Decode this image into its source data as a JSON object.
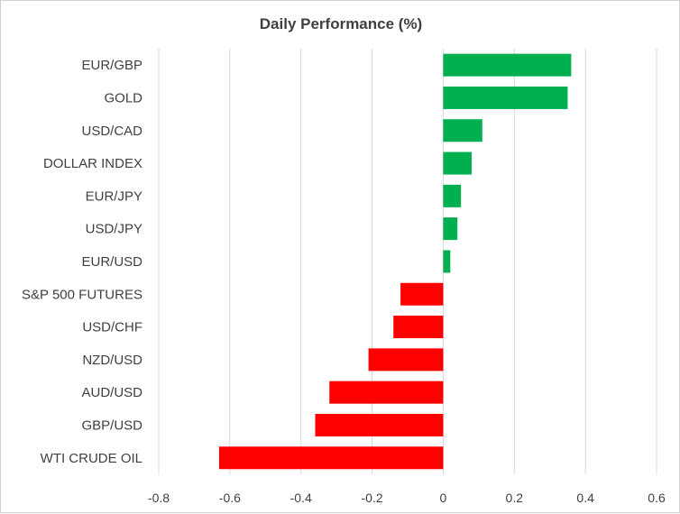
{
  "chart_data": {
    "type": "bar",
    "orientation": "horizontal",
    "title": "Daily Performance (%)",
    "categories": [
      "EUR/GBP",
      "GOLD",
      "USD/CAD",
      "DOLLAR INDEX",
      "EUR/JPY",
      "USD/JPY",
      "EUR/USD",
      "S&P 500 FUTURES",
      "USD/CHF",
      "NZD/USD",
      "AUD/USD",
      "GBP/USD",
      "WTI CRUDE OIL"
    ],
    "values": [
      0.36,
      0.35,
      0.11,
      0.08,
      0.05,
      0.04,
      0.02,
      -0.12,
      -0.14,
      -0.21,
      -0.32,
      -0.36,
      -0.63
    ],
    "xlim": [
      -0.8,
      0.6
    ],
    "xticks": [
      "-0.8",
      "-0.6",
      "-0.4",
      "-0.2",
      "0",
      "0.2",
      "0.4",
      "0.6"
    ],
    "xtick_values": [
      -0.8,
      -0.6,
      -0.4,
      -0.2,
      0,
      0.2,
      0.4,
      0.6
    ],
    "grid": "vertical",
    "colors": {
      "positive": "#00b050",
      "negative": "#ff0000",
      "grid": "#d9d9d9",
      "text": "#404040"
    }
  }
}
